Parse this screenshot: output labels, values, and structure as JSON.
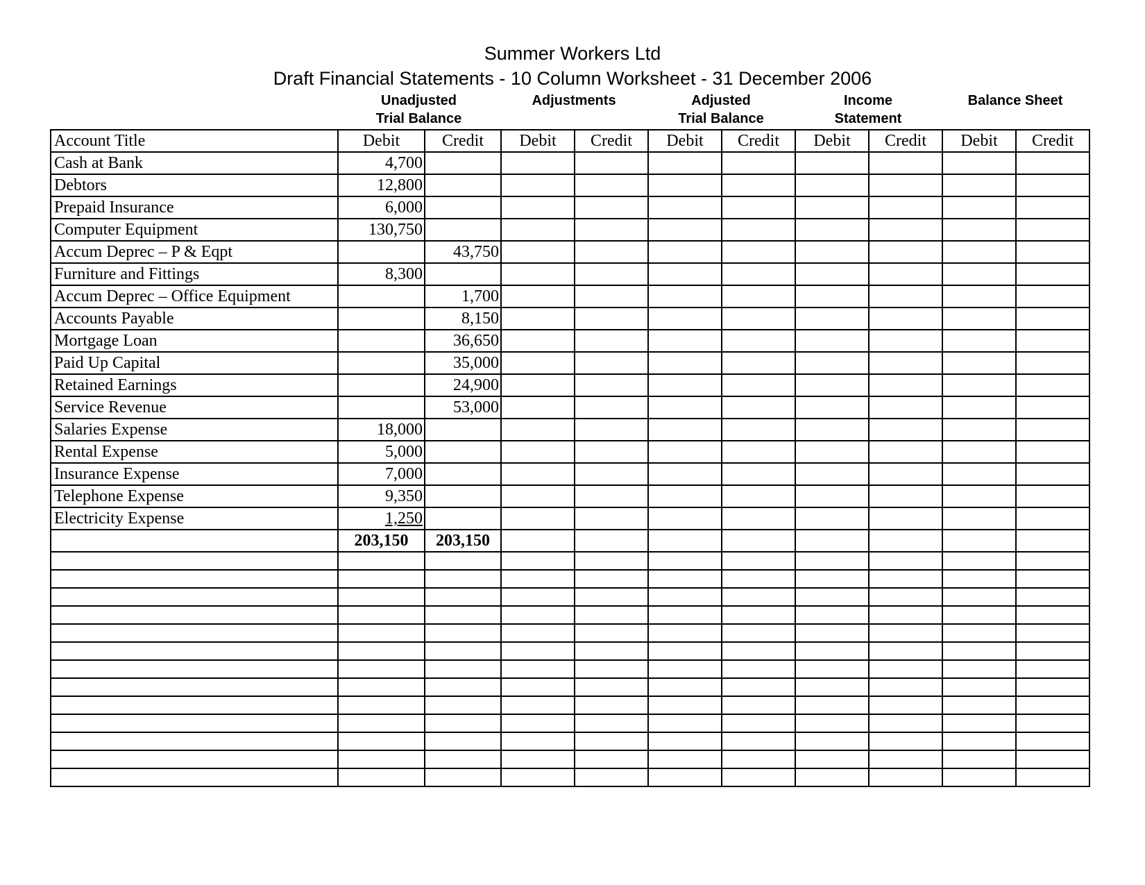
{
  "header": {
    "title": "Summer Workers Ltd",
    "subtitle": "Draft Financial Statements - 10 Column Worksheet - 31 December 2006"
  },
  "column_groups": [
    {
      "lines": [
        "Unadjusted",
        "Trial Balance"
      ]
    },
    {
      "lines": [
        "Adjustments"
      ]
    },
    {
      "lines": [
        "Adjusted",
        "Trial Balance"
      ]
    },
    {
      "lines": [
        "Income",
        "Statement"
      ]
    },
    {
      "lines": [
        "Balance Sheet"
      ]
    }
  ],
  "table": {
    "header": [
      "Account Title",
      "Debit",
      "Credit",
      "Debit",
      "Credit",
      "Debit",
      "Credit",
      "Debit",
      "Credit",
      "Debit",
      "Credit"
    ],
    "rows": [
      {
        "account": "Cash at Bank",
        "debit": "4,700"
      },
      {
        "account": "Debtors",
        "debit": "12,800"
      },
      {
        "account": "Prepaid Insurance",
        "debit": "6,000"
      },
      {
        "account": "Computer Equipment",
        "debit": "130,750"
      },
      {
        "account": "Accum Deprec – P & Eqpt",
        "credit": "43,750"
      },
      {
        "account": "Furniture and Fittings",
        "debit": "8,300"
      },
      {
        "account": "Accum Deprec – Office Equipment",
        "credit": "1,700"
      },
      {
        "account": "Accounts Payable",
        "credit": "8,150"
      },
      {
        "account": "Mortgage Loan",
        "credit": "36,650"
      },
      {
        "account": "Paid Up Capital",
        "credit": "35,000"
      },
      {
        "account": "Retained Earnings",
        "credit": "24,900"
      },
      {
        "account": "Service Revenue",
        "credit": "53,000"
      },
      {
        "account": "Salaries Expense",
        "debit": "18,000"
      },
      {
        "account": "Rental Expense",
        "debit": "5,000"
      },
      {
        "account": "Insurance Expense",
        "debit": "7,000"
      },
      {
        "account": "Telephone Expense",
        "debit": "9,350"
      },
      {
        "account": "Electricity Expense",
        "debit": "1,250"
      }
    ],
    "totals": {
      "debit": "203,150",
      "credit": "203,150"
    }
  }
}
